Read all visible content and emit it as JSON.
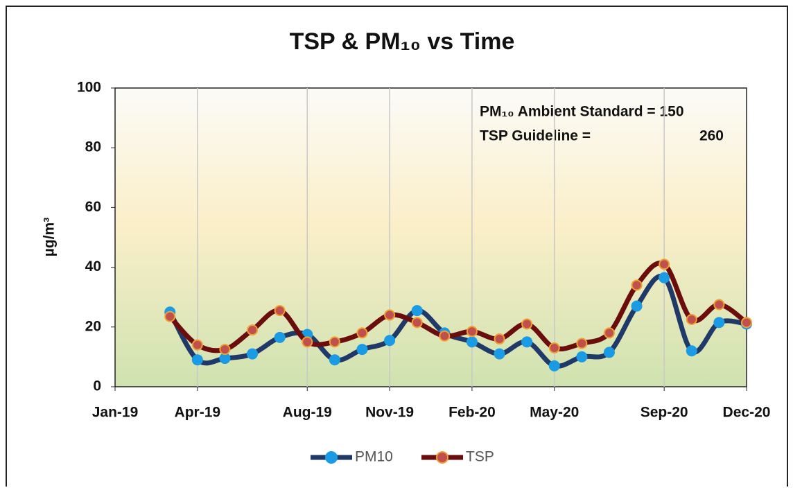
{
  "chart_data": {
    "type": "line",
    "title": "TSP & PM₁₀ vs Time",
    "y_label": "µg/m³",
    "annotations": [
      "PM₁₀ Ambient Standard = 150",
      "TSP Guideline =",
      "260"
    ],
    "x": [
      "2019-03",
      "2019-04",
      "2019-05",
      "2019-06",
      "2019-07",
      "2019-08",
      "2019-09",
      "2019-10",
      "2019-11",
      "2019-12",
      "2020-01",
      "2020-02",
      "2020-03",
      "2020-04",
      "2020-05",
      "2020-06",
      "2020-07",
      "2020-08",
      "2020-09",
      "2020-10",
      "2020-11",
      "2020-12"
    ],
    "series": [
      {
        "name": "PM10",
        "color": "#1f3a68",
        "marker_color": "#1b9be3",
        "values": [
          25,
          9,
          9.5,
          11,
          16.5,
          17.5,
          9,
          12.5,
          15.5,
          25.5,
          18,
          15,
          11,
          15,
          7,
          10,
          11.5,
          27,
          36.5,
          12,
          21.5,
          21
        ]
      },
      {
        "name": "TSP",
        "color": "#6b0d0d",
        "marker_color": "#c0504d",
        "values": [
          23.5,
          14,
          12.5,
          19,
          25.5,
          15,
          15,
          18,
          24,
          21.5,
          17,
          18.5,
          16,
          21,
          13,
          14.5,
          18,
          34,
          41,
          22.5,
          27.5,
          21.5
        ]
      }
    ],
    "xlim": [
      "2019-01",
      "2020-12"
    ],
    "xticks": [
      {
        "value": "2019-01",
        "label": "Jan-19"
      },
      {
        "value": "2019-04",
        "label": "Apr-19"
      },
      {
        "value": "2019-08",
        "label": "Aug-19"
      },
      {
        "value": "2019-11",
        "label": "Nov-19"
      },
      {
        "value": "2020-02",
        "label": "Feb-20"
      },
      {
        "value": "2020-05",
        "label": "May-20"
      },
      {
        "value": "2020-09",
        "label": "Sep-20"
      },
      {
        "value": "2020-12",
        "label": "Dec-20"
      }
    ],
    "ylim": [
      0,
      100
    ],
    "yticks": [
      0,
      20,
      40,
      60,
      80,
      100
    ],
    "grid": "x",
    "legend": "bottom"
  }
}
